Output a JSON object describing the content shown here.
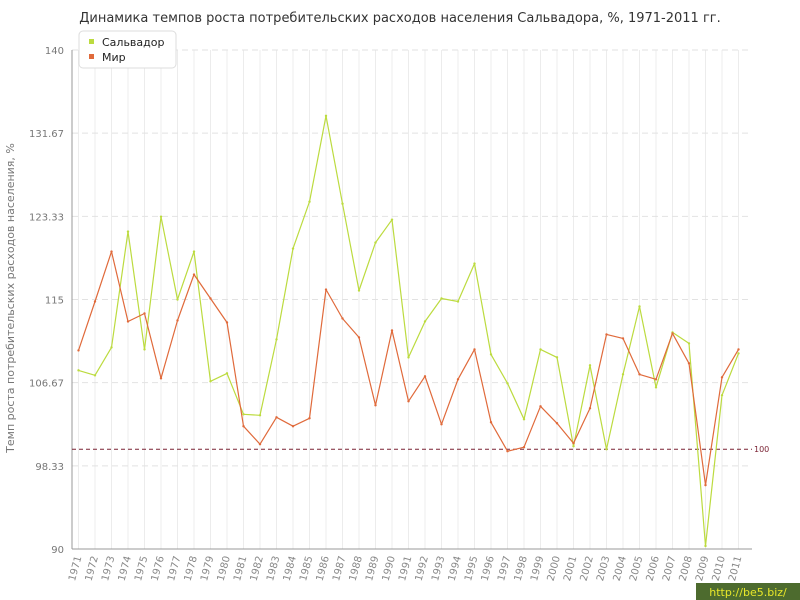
{
  "chart_data": {
    "type": "line",
    "title": "Динамика темпов роста потребительских расходов населения Сальвадора, %, 1971-2011 гг.",
    "ylabel": "Темп роста потребительских расходов населения, %",
    "xlabel": "",
    "ylim": [
      90,
      140
    ],
    "y_ticks": [
      "90",
      "98.33",
      "106.67",
      "115",
      "123.33",
      "131.67",
      "140"
    ],
    "y_tick_values": [
      90,
      98.33,
      106.67,
      115,
      123.33,
      131.67,
      140
    ],
    "categories": [
      "1971",
      "1972",
      "1973",
      "1974",
      "1975",
      "1976",
      "1977",
      "1978",
      "1979",
      "1980",
      "1981",
      "1982",
      "1983",
      "1984",
      "1985",
      "1986",
      "1987",
      "1988",
      "1989",
      "1990",
      "1991",
      "1992",
      "1993",
      "1994",
      "1995",
      "1996",
      "1997",
      "1998",
      "1999",
      "2000",
      "2001",
      "2002",
      "2003",
      "2004",
      "2005",
      "2006",
      "2007",
      "2008",
      "2009",
      "2010",
      "2011"
    ],
    "series": [
      {
        "name": "Сальвадор",
        "color": "#bcdb3f",
        "values": [
          107.9,
          107.4,
          110.2,
          121.8,
          110.0,
          123.3,
          115.0,
          119.8,
          106.8,
          107.6,
          103.5,
          103.4,
          111.0,
          120.1,
          124.8,
          133.4,
          124.6,
          115.9,
          120.7,
          123.0,
          109.2,
          112.8,
          115.1,
          114.8,
          118.6,
          109.5,
          106.6,
          103.0,
          110.0,
          109.2,
          100.3,
          108.4,
          100.0,
          107.5,
          114.3,
          106.2,
          111.7,
          110.6,
          90.3,
          105.4,
          109.6
        ]
      },
      {
        "name": "Мир",
        "color": "#e06a3b",
        "values": [
          109.9,
          114.8,
          119.8,
          112.8,
          113.6,
          107.1,
          112.9,
          117.5,
          115.1,
          112.7,
          102.3,
          100.5,
          103.2,
          102.3,
          103.1,
          116.0,
          113.1,
          111.2,
          104.4,
          111.9,
          104.8,
          107.3,
          102.5,
          107.0,
          110.0,
          102.7,
          99.8,
          100.2,
          104.3,
          102.6,
          100.6,
          104.1,
          111.5,
          111.1,
          107.5,
          107.0,
          111.6,
          108.6,
          96.4,
          107.2,
          110.0
        ]
      }
    ],
    "reference_line": {
      "value": 100,
      "label": "100",
      "color": "#7a2233"
    },
    "grid": true,
    "legend_position": "top-left"
  },
  "watermark": "http://be5.biz/"
}
